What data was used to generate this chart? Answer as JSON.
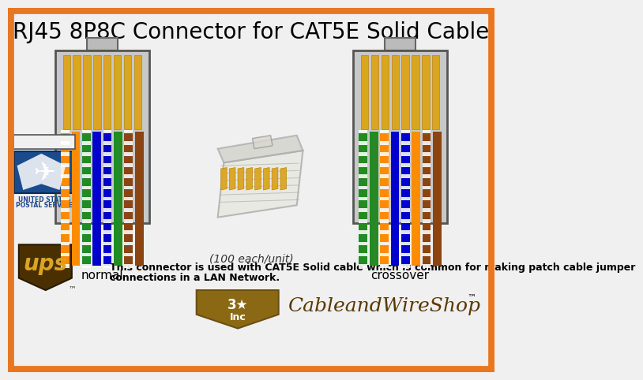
{
  "title": "RJ45 8P8C Connector for CAT5E Solid Cable",
  "title_fontsize": 20,
  "bg_color": "#f0f0f0",
  "border_color": "#e87722",
  "border_lw": 7,
  "connector_bg": "#c8c8c8",
  "normal_label": "normal",
  "crossover_label": "crossover",
  "normal_wires": [
    {
      "color": "#ff8c00",
      "striped": true
    },
    {
      "color": "#ff8c00",
      "striped": false
    },
    {
      "color": "#228b22",
      "striped": true
    },
    {
      "color": "#0000cc",
      "striped": false
    },
    {
      "color": "#0000cc",
      "striped": true
    },
    {
      "color": "#228b22",
      "striped": false
    },
    {
      "color": "#8b4513",
      "striped": true
    },
    {
      "color": "#8b4513",
      "striped": false
    }
  ],
  "crossover_wires": [
    {
      "color": "#228b22",
      "striped": true
    },
    {
      "color": "#228b22",
      "striped": false
    },
    {
      "color": "#ff8c00",
      "striped": true
    },
    {
      "color": "#0000cc",
      "striped": false
    },
    {
      "color": "#0000cc",
      "striped": true
    },
    {
      "color": "#ff8c00",
      "striped": false
    },
    {
      "color": "#8b4513",
      "striped": true
    },
    {
      "color": "#8b4513",
      "striped": false
    }
  ],
  "text_100each": "(100 each/unit)",
  "text_desc_line1": "This connector is used with CAT5E Solid cable which is common for making patch cable jumper",
  "text_desc_line2": "connections in a LAN Network.",
  "brand_tm": "™"
}
